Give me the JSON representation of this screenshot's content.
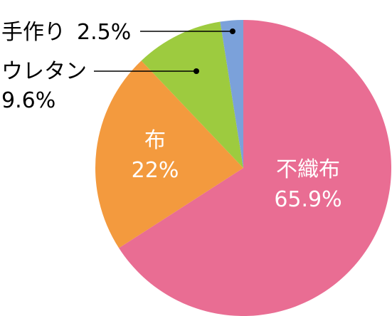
{
  "chart_data": {
    "type": "pie",
    "slices": [
      {
        "label": "不織布",
        "value": 65.9,
        "display": "65.9%",
        "color": "#E96D93"
      },
      {
        "label": "布",
        "value": 22,
        "display": "22%",
        "color": "#F39A3E"
      },
      {
        "label": "ウレタン",
        "value": 9.6,
        "display": "9.6%",
        "color": "#9DCB3F"
      },
      {
        "label": "手作り",
        "value": 2.5,
        "display": "2.5%",
        "color": "#7BA1DA"
      }
    ],
    "start_angle_deg": 0,
    "direction": "clockwise",
    "legend": "none",
    "leader_line_color": "#000000"
  }
}
